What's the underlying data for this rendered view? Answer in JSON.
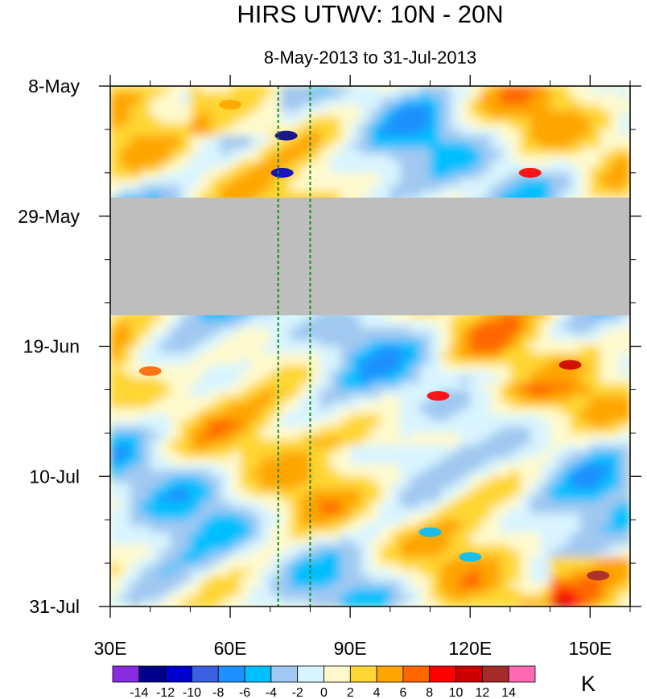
{
  "chart_data": {
    "type": "heatmap",
    "title": "HIRS UTWV: 10N - 20N",
    "subtitle": "8-May-2013 to 31-Jul-2013",
    "x_axis": {
      "range": [
        30,
        160
      ],
      "units": "degrees longitude",
      "ticks": [
        {
          "value": 30,
          "label": "30E"
        },
        {
          "value": 60,
          "label": "60E"
        },
        {
          "value": 90,
          "label": "90E"
        },
        {
          "value": 120,
          "label": "120E"
        },
        {
          "value": 150,
          "label": "150E"
        }
      ]
    },
    "y_axis": {
      "range_days": [
        0,
        84
      ],
      "units": "days since 8-May-2013 (top)",
      "ticks": [
        {
          "value": 0,
          "label": "8-May"
        },
        {
          "value": 21,
          "label": "29-May"
        },
        {
          "value": 42,
          "label": "19-Jun"
        },
        {
          "value": 63,
          "label": "10-Jul"
        },
        {
          "value": 84,
          "label": "31-Jul"
        }
      ]
    },
    "missing_data": {
      "day_start": 18,
      "day_end": 37,
      "color": "#bebebe"
    },
    "reference_lines": [
      {
        "lon": 72,
        "style": "dashed",
        "color": "#1a8a1a"
      },
      {
        "lon": 80,
        "style": "dashed",
        "color": "#1a8a1a"
      }
    ],
    "colorbar": {
      "unit": "K",
      "levels": [
        -14,
        -12,
        -10,
        -8,
        -6,
        -4,
        -2,
        0,
        2,
        4,
        6,
        8,
        10,
        12,
        14
      ],
      "level_labels": [
        "-14",
        "-12",
        "-10",
        "-8",
        "-6",
        "-4",
        "-2",
        "0",
        "2",
        "4",
        "6",
        "8",
        "10",
        "12",
        "14"
      ],
      "colors": [
        "#8a2be2",
        "#00008b",
        "#0000cd",
        "#3a5fe0",
        "#1e90ff",
        "#00bfff",
        "#a0c8f0",
        "#d8f4ff",
        "#fffacd",
        "#ffd633",
        "#ffa500",
        "#ff6600",
        "#ff0000",
        "#cc0000",
        "#a52a2a",
        "#ff69b4"
      ]
    },
    "features": [
      {
        "lon": 74,
        "day": 8,
        "value": -13
      },
      {
        "lon": 73,
        "day": 14,
        "value": -12
      },
      {
        "lon": 135,
        "day": 14,
        "value": 9
      },
      {
        "lon": 60,
        "day": 3,
        "value": 5
      },
      {
        "lon": 145,
        "day": 45,
        "value": 10
      },
      {
        "lon": 112,
        "day": 50,
        "value": 9
      },
      {
        "lon": 40,
        "day": 46,
        "value": 6
      },
      {
        "lon": 152,
        "day": 79,
        "value": 12
      },
      {
        "lon": 110,
        "day": 72,
        "value": -6
      },
      {
        "lon": 120,
        "day": 76,
        "value": -6
      }
    ]
  }
}
